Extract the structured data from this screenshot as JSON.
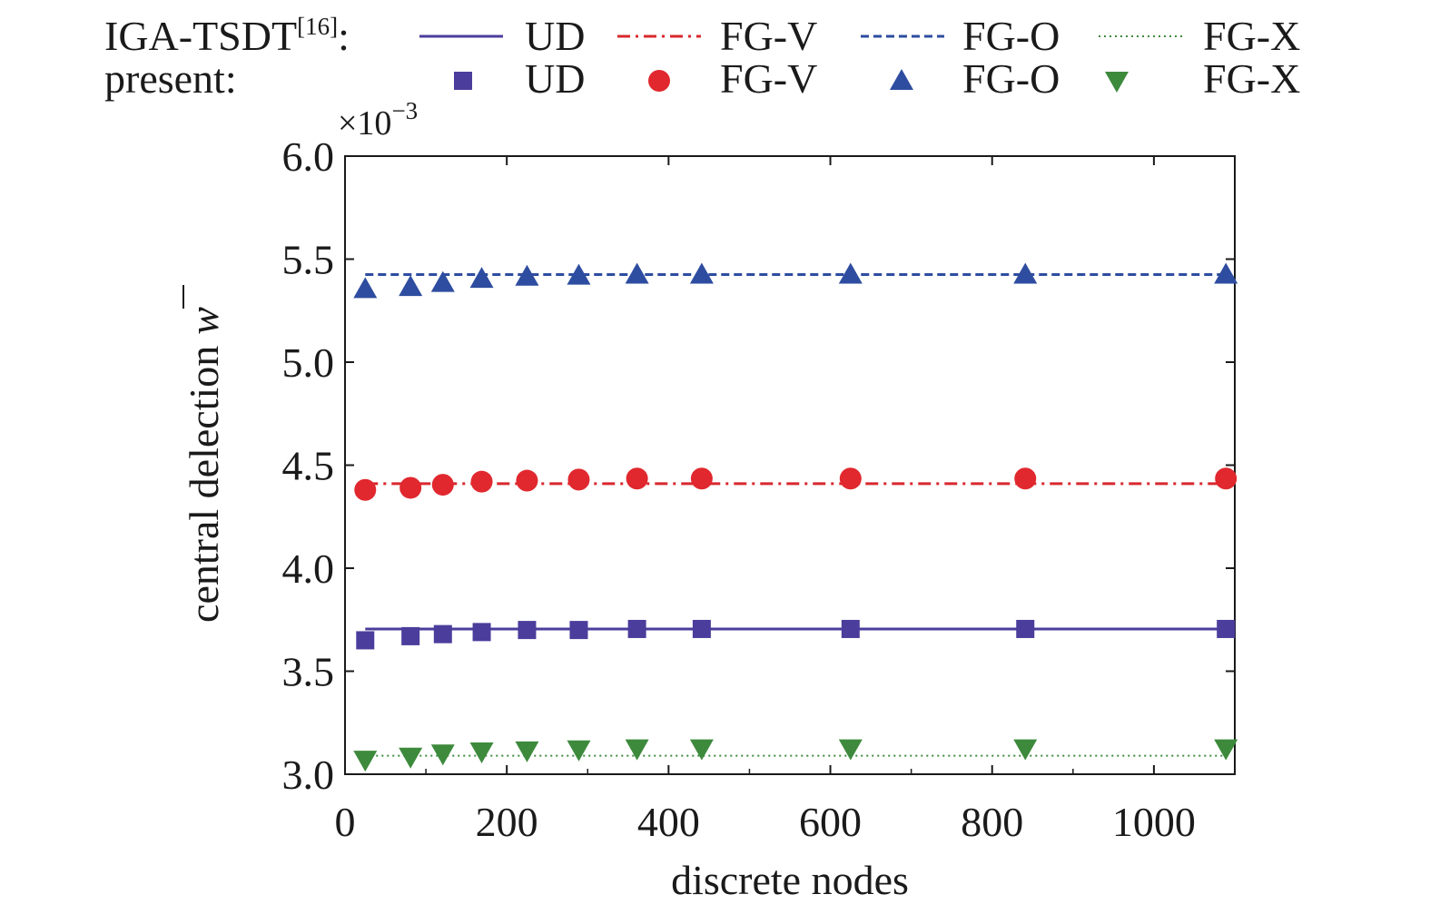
{
  "chart_data": {
    "type": "line",
    "xlabel": "discrete nodes",
    "ylabel": "central delection",
    "ylabel_symbol": "w",
    "y_multiplier": "×10",
    "y_multiplier_exp": "−3",
    "xlim": [
      0,
      1100
    ],
    "ylim": [
      3.0,
      6.0
    ],
    "x_ticks": [
      0,
      200,
      400,
      600,
      800,
      1000
    ],
    "x_tick_labels": [
      "0",
      "200",
      "400",
      "600",
      "800",
      "1000"
    ],
    "y_ticks": [
      3.0,
      3.5,
      4.0,
      4.5,
      5.0,
      5.5,
      6.0
    ],
    "y_tick_labels": [
      "3.0",
      "3.5",
      "4.0",
      "4.5",
      "5.0",
      "5.5",
      "6.0"
    ],
    "grid": false,
    "legend": {
      "placement": "top",
      "row1_label": "IGA-TSDT",
      "row1_ref": "[16]",
      "row1_suffix": ":",
      "row2_label": "present:"
    },
    "reference_series": [
      {
        "name": "UD",
        "style": "solid",
        "color": "#4b3d9c",
        "value": 3.705
      },
      {
        "name": "FG-V",
        "style": "dashdot",
        "color": "#d8282e",
        "value": 4.41
      },
      {
        "name": "FG-O",
        "style": "dashed",
        "color": "#2e4da0",
        "value": 5.425
      },
      {
        "name": "FG-X",
        "style": "dotted",
        "color": "#3d8a3d",
        "value": 3.09
      }
    ],
    "x": [
      25,
      81,
      121,
      169,
      225,
      289,
      361,
      441,
      625,
      841,
      1089
    ],
    "series": [
      {
        "name": "UD",
        "marker": "square",
        "color": "#4b3d9c",
        "values": [
          3.65,
          3.67,
          3.68,
          3.69,
          3.7,
          3.7,
          3.705,
          3.705,
          3.705,
          3.705,
          3.705
        ]
      },
      {
        "name": "FG-V",
        "marker": "circle",
        "color": "#e0282e",
        "values": [
          4.38,
          4.39,
          4.405,
          4.42,
          4.425,
          4.43,
          4.435,
          4.435,
          4.435,
          4.435,
          4.435
        ]
      },
      {
        "name": "FG-O",
        "marker": "triangle-up",
        "color": "#2e4da0",
        "values": [
          5.355,
          5.365,
          5.385,
          5.405,
          5.415,
          5.42,
          5.425,
          5.425,
          5.425,
          5.425,
          5.425
        ]
      },
      {
        "name": "FG-X",
        "marker": "triangle-down",
        "color": "#3d8a3d",
        "values": [
          3.07,
          3.085,
          3.1,
          3.11,
          3.115,
          3.12,
          3.125,
          3.125,
          3.125,
          3.125,
          3.125
        ]
      }
    ]
  }
}
